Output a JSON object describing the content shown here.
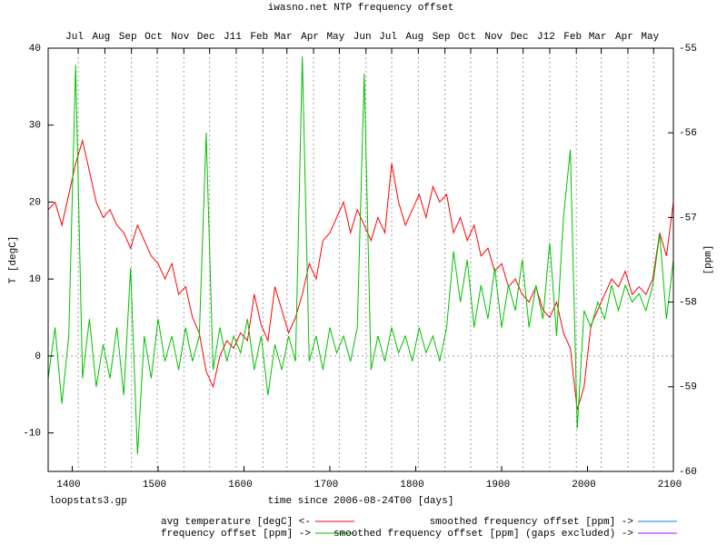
{
  "chart_data": {
    "type": "line",
    "title": "iwasno.net NTP frequency offset",
    "xlabel": "time since 2006-08-24T00 [days]",
    "ylabel": "T [degC]",
    "y2label": "[ppm]",
    "footnote": "loopstats3.gp",
    "grid": "x2",
    "zeroaxis": true,
    "xlim": [
      1372,
      2100
    ],
    "xticks": [
      1400,
      1500,
      1600,
      1700,
      1800,
      1900,
      2000,
      2100
    ],
    "x2ticks": [
      {
        "value": 1407,
        "label": "Jul"
      },
      {
        "value": 1438,
        "label": "Aug"
      },
      {
        "value": 1469,
        "label": "Sep"
      },
      {
        "value": 1499,
        "label": "Oct"
      },
      {
        "value": 1530,
        "label": "Nov"
      },
      {
        "value": 1560,
        "label": "Dec"
      },
      {
        "value": 1591,
        "label": "J11"
      },
      {
        "value": 1622,
        "label": "Feb"
      },
      {
        "value": 1650,
        "label": "Mar"
      },
      {
        "value": 1681,
        "label": "Apr"
      },
      {
        "value": 1711,
        "label": "May"
      },
      {
        "value": 1742,
        "label": "Jun"
      },
      {
        "value": 1772,
        "label": "Jul"
      },
      {
        "value": 1803,
        "label": "Aug"
      },
      {
        "value": 1834,
        "label": "Sep"
      },
      {
        "value": 1864,
        "label": "Oct"
      },
      {
        "value": 1895,
        "label": "Nov"
      },
      {
        "value": 1925,
        "label": "Dec"
      },
      {
        "value": 1956,
        "label": "J12"
      },
      {
        "value": 1987,
        "label": "Feb"
      },
      {
        "value": 2016,
        "label": "Mar"
      },
      {
        "value": 2047,
        "label": "Apr"
      },
      {
        "value": 2077,
        "label": "May"
      }
    ],
    "ylim": [
      -15,
      40
    ],
    "yticks": [
      -10,
      0,
      10,
      20,
      30,
      40
    ],
    "y2lim": [
      -60,
      -55
    ],
    "y2ticks": [
      -60,
      -59,
      -58,
      -57,
      -56,
      -55
    ],
    "x": [
      1372,
      1380,
      1388,
      1396,
      1404,
      1412,
      1420,
      1428,
      1436,
      1444,
      1452,
      1460,
      1468,
      1476,
      1484,
      1492,
      1500,
      1508,
      1516,
      1524,
      1532,
      1540,
      1548,
      1556,
      1564,
      1572,
      1580,
      1588,
      1596,
      1604,
      1612,
      1620,
      1628,
      1636,
      1644,
      1652,
      1660,
      1668,
      1676,
      1684,
      1692,
      1700,
      1708,
      1716,
      1724,
      1732,
      1740,
      1748,
      1756,
      1764,
      1772,
      1780,
      1788,
      1796,
      1804,
      1812,
      1820,
      1828,
      1836,
      1844,
      1852,
      1860,
      1868,
      1876,
      1884,
      1892,
      1900,
      1908,
      1916,
      1924,
      1932,
      1940,
      1948,
      1956,
      1964,
      1972,
      1980,
      1988,
      1996,
      2004,
      2012,
      2020,
      2028,
      2036,
      2044,
      2052,
      2060,
      2068,
      2076,
      2084,
      2092,
      2100
    ],
    "series": [
      {
        "name": "avg temperature [degC] <-",
        "color": "#ff0000",
        "axis": "y",
        "values": [
          19,
          20,
          17,
          21,
          25,
          28,
          24,
          20,
          18,
          19,
          17,
          16,
          14,
          17,
          15,
          13,
          12,
          10,
          12,
          8,
          9,
          5,
          3,
          -2,
          -4,
          0,
          2,
          1,
          3,
          2,
          8,
          4,
          2,
          9,
          6,
          3,
          5,
          8,
          12,
          10,
          15,
          16,
          18,
          20,
          16,
          19,
          17,
          15,
          18,
          16,
          25,
          20,
          17,
          19,
          21,
          18,
          22,
          20,
          21,
          16,
          18,
          15,
          17,
          13,
          14,
          11,
          12,
          9,
          10,
          8,
          7,
          9,
          6,
          5,
          7,
          3,
          1,
          -7,
          -4,
          4,
          6,
          8,
          10,
          9,
          11,
          8,
          9,
          8,
          10,
          16,
          13,
          20
        ]
      },
      {
        "name": "frequency offset [ppm] ->",
        "color": "#00c000",
        "axis": "y2",
        "values": [
          -58.9,
          -58.3,
          -59.2,
          -58.4,
          -55.2,
          -58.9,
          -58.2,
          -59.0,
          -58.5,
          -58.9,
          -58.3,
          -59.1,
          -57.6,
          -59.8,
          -58.4,
          -58.9,
          -58.2,
          -58.7,
          -58.4,
          -58.8,
          -58.3,
          -58.7,
          -58.4,
          -56.0,
          -58.8,
          -58.3,
          -58.7,
          -58.4,
          -58.6,
          -58.2,
          -58.8,
          -58.4,
          -59.1,
          -58.5,
          -58.8,
          -58.4,
          -58.7,
          -55.1,
          -58.7,
          -58.4,
          -58.8,
          -58.3,
          -58.6,
          -58.4,
          -58.7,
          -58.3,
          -55.3,
          -58.8,
          -58.4,
          -58.7,
          -58.3,
          -58.6,
          -58.4,
          -58.7,
          -58.3,
          -58.6,
          -58.4,
          -58.7,
          -58.3,
          -57.4,
          -58.0,
          -57.5,
          -58.3,
          -57.8,
          -58.2,
          -57.6,
          -58.3,
          -57.8,
          -58.1,
          -57.5,
          -58.3,
          -57.8,
          -58.2,
          -57.3,
          -58.4,
          -57.0,
          -56.2,
          -59.5,
          -58.1,
          -58.3,
          -58.0,
          -58.2,
          -57.8,
          -58.1,
          -57.8,
          -58.0,
          -57.9,
          -58.1,
          -57.8,
          -57.2,
          -58.2,
          -57.5
        ]
      },
      {
        "name": "smoothed frequency offset [ppm] ->",
        "color": "#0080ff",
        "axis": "y2",
        "values": [
          null,
          null,
          null,
          null,
          null,
          null,
          null,
          null,
          null,
          null,
          null,
          null,
          null,
          null,
          null,
          null,
          null,
          null,
          null,
          null,
          null,
          null,
          null,
          null,
          null,
          null,
          null,
          null,
          null,
          null,
          null,
          null,
          null,
          null,
          null,
          null,
          null,
          null,
          null,
          null,
          null,
          null,
          null,
          null,
          null,
          null,
          null,
          null,
          null,
          null,
          null,
          null,
          null,
          null,
          null,
          null,
          null,
          null,
          null,
          null,
          null,
          null,
          null,
          null,
          null,
          null,
          null,
          null,
          null,
          null,
          null,
          null,
          null,
          null,
          null,
          null,
          null,
          null,
          null,
          null,
          null,
          null,
          null,
          null,
          null,
          null,
          null,
          null,
          null,
          null,
          null,
          null
        ]
      },
      {
        "name": "smoothed frequency offset [ppm] (gaps excluded) ->",
        "color": "#c000ff",
        "axis": "y2",
        "values": [
          null,
          null,
          null,
          null,
          null,
          null,
          null,
          null,
          null,
          null,
          null,
          null,
          null,
          null,
          null,
          null,
          null,
          null,
          null,
          null,
          null,
          null,
          null,
          null,
          null,
          null,
          null,
          null,
          null,
          null,
          null,
          null,
          null,
          null,
          null,
          null,
          null,
          null,
          null,
          null,
          null,
          null,
          null,
          null,
          null,
          null,
          null,
          null,
          null,
          null,
          null,
          null,
          null,
          null,
          null,
          null,
          null,
          null,
          null,
          null,
          null,
          null,
          null,
          null,
          null,
          null,
          null,
          null,
          null,
          null,
          null,
          null,
          null,
          null,
          null,
          null,
          null,
          null,
          null,
          null,
          null,
          null,
          null,
          null,
          null,
          null,
          null,
          null,
          null,
          null,
          null,
          null
        ]
      }
    ]
  }
}
